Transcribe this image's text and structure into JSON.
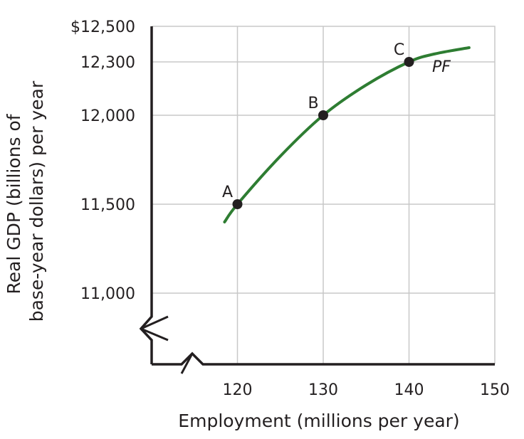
{
  "chart_data": {
    "type": "line",
    "title": "",
    "xlabel": "Employment (millions per year)",
    "ylabel_lines": [
      "Real GDP (billions of",
      "base-year dollars) per year"
    ],
    "xlim": [
      110,
      150
    ],
    "ylim": [
      10600,
      12500
    ],
    "x_ticks": [
      {
        "value": 120,
        "label": "120"
      },
      {
        "value": 130,
        "label": "130"
      },
      {
        "value": 140,
        "label": "140"
      },
      {
        "value": 150,
        "label": "150"
      }
    ],
    "y_ticks": [
      {
        "value": 12500,
        "label": "$12,500"
      },
      {
        "value": 12300,
        "label": "12,300"
      },
      {
        "value": 12000,
        "label": "12,000"
      },
      {
        "value": 11500,
        "label": "11,500"
      },
      {
        "value": 11000,
        "label": "11,000"
      }
    ],
    "axis_break": true,
    "grid": true,
    "series": [
      {
        "name": "PF",
        "color": "#2e7d32",
        "x": [
          118.5,
          120,
          125,
          130,
          135,
          140,
          143,
          147
        ],
        "y": [
          11400,
          11500,
          11770,
          12000,
          12170,
          12300,
          12345,
          12380
        ]
      }
    ],
    "points": [
      {
        "label": "A",
        "x": 120,
        "y": 11500
      },
      {
        "label": "B",
        "x": 130,
        "y": 12000
      },
      {
        "label": "C",
        "x": 140,
        "y": 12300
      }
    ],
    "colors": {
      "axis": "#231f20",
      "grid": "#c8c8c8",
      "curve": "#2e7d32",
      "point": "#231f20"
    }
  }
}
